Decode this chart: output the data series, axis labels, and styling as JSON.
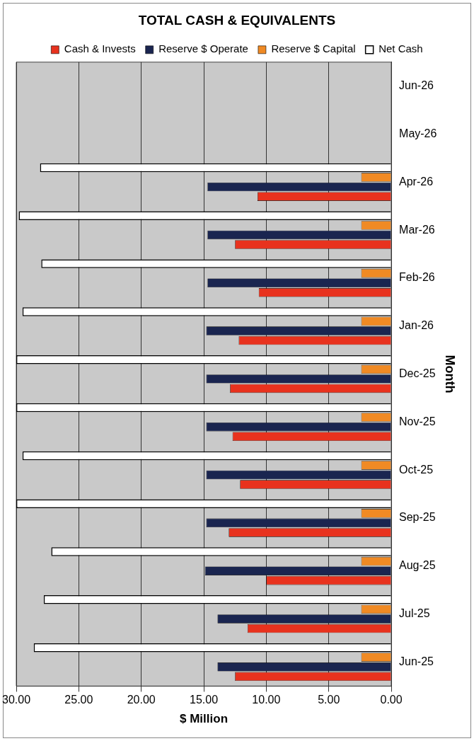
{
  "chart_data": {
    "type": "bar",
    "orientation": "horizontal",
    "title": "TOTAL CASH & EQUIVALENTS",
    "xlabel": "$ Million",
    "ylabel": "Month",
    "categories": [
      "Jun-26",
      "May-26",
      "Apr-26",
      "Mar-26",
      "Feb-26",
      "Jan-26",
      "Dec-25",
      "Nov-25",
      "Oct-25",
      "Sep-25",
      "Aug-25",
      "Jul-25",
      "Jun-25"
    ],
    "series": [
      {
        "name": "Cash & Invests",
        "color": "#e8321e",
        "values": [
          null,
          null,
          10.7,
          12.5,
          10.6,
          12.2,
          12.9,
          12.7,
          12.1,
          13.0,
          10.0,
          11.5,
          12.5
        ]
      },
      {
        "name": "Reserve $ Operate",
        "color": "#1a2550",
        "values": [
          null,
          null,
          14.7,
          14.7,
          14.7,
          14.8,
          14.8,
          14.8,
          14.8,
          14.8,
          14.9,
          13.9,
          13.9
        ]
      },
      {
        "name": "Reserve $ Capital",
        "color": "#f08a24",
        "values": [
          null,
          null,
          2.4,
          2.4,
          2.4,
          2.4,
          2.4,
          2.4,
          2.4,
          2.4,
          2.4,
          2.4,
          2.4
        ]
      },
      {
        "name": "Net Cash",
        "color": "#ffffff",
        "values": [
          null,
          null,
          28.1,
          29.8,
          28.0,
          29.5,
          30,
          30,
          29.5,
          30,
          27.2,
          27.8,
          28.6
        ]
      }
    ],
    "xlim": [
      30,
      0
    ],
    "xticks": [
      {
        "value": 30,
        "label": "30.00"
      },
      {
        "value": 25,
        "label": "25.00"
      },
      {
        "value": 20,
        "label": "20.00"
      },
      {
        "value": 15,
        "label": "15.00"
      },
      {
        "value": 10,
        "label": "10.00"
      },
      {
        "value": 5,
        "label": "5.00"
      },
      {
        "value": 0,
        "label": "0.00"
      }
    ],
    "grid": "x",
    "legend": "top"
  }
}
